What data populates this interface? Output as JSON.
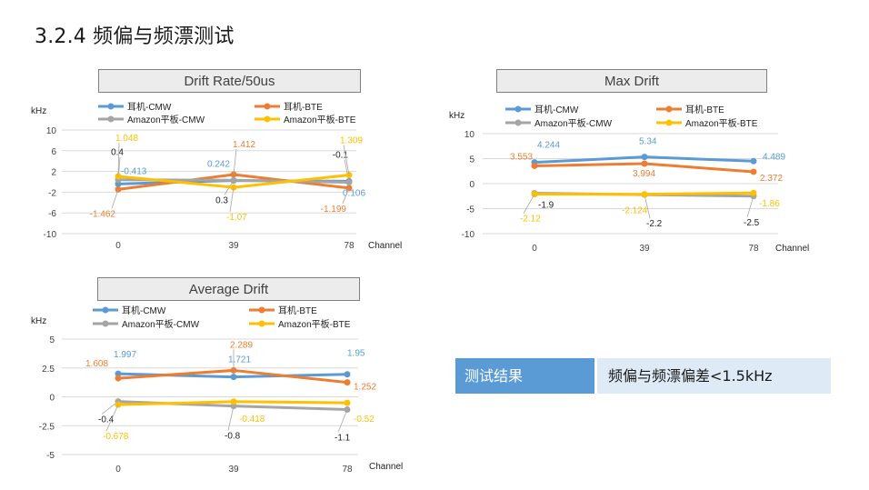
{
  "page": {
    "title": "3.2.4 频偏与频漂测试",
    "result_label": "测试结果",
    "result_value": "频偏与频漂偏差<1.5kHz"
  },
  "colors": {
    "earphone_cmw": "#5b9bd5",
    "earphone_bte": "#ed7d31",
    "amazon_cmw": "#a5a5a5",
    "amazon_bte": "#ffc000"
  },
  "chart_data": [
    {
      "type": "line",
      "title": "Drift Rate/50us",
      "ylabel": "kHz",
      "xlabel": "Channel",
      "categories": [
        "0",
        "39",
        "78"
      ],
      "ylim": [
        -10,
        10
      ],
      "yticks": [
        -10,
        -6,
        -2,
        2,
        6,
        10
      ],
      "legend_position": "top",
      "series": [
        {
          "name": "耳机-CMW",
          "color": "#5b9bd5",
          "values": [
            -0.413,
            0.242,
            0.106
          ],
          "labels": [
            "-0.413",
            "0.242",
            "0.106"
          ]
        },
        {
          "name": "耳机-BTE",
          "color": "#ed7d31",
          "values": [
            -1.462,
            1.412,
            -1.199
          ],
          "labels": [
            "-1.462",
            "1.412",
            "-1.199"
          ]
        },
        {
          "name": "Amazon平板-CMW",
          "color": "#a5a5a5",
          "values": [
            0.4,
            0.3,
            -0.1
          ],
          "labels": [
            "0.4",
            "0.3",
            "-0.1"
          ]
        },
        {
          "name": "Amazon平板-BTE",
          "color": "#ffc000",
          "values": [
            1.048,
            -1.07,
            1.309
          ],
          "labels": [
            "1.048",
            "-1.07",
            "1.309"
          ]
        }
      ]
    },
    {
      "type": "line",
      "title": "Max Drift",
      "ylabel": "kHz",
      "xlabel": "Channel",
      "categories": [
        "0",
        "39",
        "78"
      ],
      "ylim": [
        -10,
        10
      ],
      "yticks": [
        -10,
        -5,
        0,
        5,
        10
      ],
      "legend_position": "top",
      "series": [
        {
          "name": "耳机-CMW",
          "color": "#5b9bd5",
          "values": [
            4.244,
            5.34,
            4.489
          ],
          "labels": [
            "4.244",
            "5.34",
            "4.489"
          ]
        },
        {
          "name": "耳机-BTE",
          "color": "#ed7d31",
          "values": [
            3.553,
            3.994,
            2.372
          ],
          "labels": [
            "3.553",
            "3.994",
            "2.372"
          ]
        },
        {
          "name": "Amazon平板-CMW",
          "color": "#a5a5a5",
          "values": [
            -1.9,
            -2.2,
            -2.5
          ],
          "labels": [
            "-1.9",
            "-2.2",
            "-2.5"
          ]
        },
        {
          "name": "Amazon平板-BTE",
          "color": "#ffc000",
          "values": [
            -2.12,
            -2.124,
            -1.86
          ],
          "labels": [
            "-2.12",
            "-2.124",
            "-1.86"
          ]
        }
      ]
    },
    {
      "type": "line",
      "title": "Average Drift",
      "ylabel": "kHz",
      "xlabel": "Channel",
      "categories": [
        "0",
        "39",
        "78"
      ],
      "ylim": [
        -5,
        5
      ],
      "yticks": [
        -5,
        -2.5,
        0,
        2.5,
        5
      ],
      "legend_position": "top",
      "series": [
        {
          "name": "耳机-CMW",
          "color": "#5b9bd5",
          "values": [
            1.997,
            1.721,
            1.95
          ],
          "labels": [
            "1.997",
            "1.721",
            "1.95"
          ]
        },
        {
          "name": "耳机-BTE",
          "color": "#ed7d31",
          "values": [
            1.608,
            2.289,
            1.252
          ],
          "labels": [
            "1.608",
            "2.289",
            "1.252"
          ]
        },
        {
          "name": "Amazon平板-CMW",
          "color": "#a5a5a5",
          "values": [
            -0.4,
            -0.8,
            -1.1
          ],
          "labels": [
            "-0.4",
            "-0.8",
            "-1.1"
          ]
        },
        {
          "name": "Amazon平板-BTE",
          "color": "#ffc000",
          "values": [
            -0.678,
            -0.418,
            -0.52
          ],
          "labels": [
            "-0.678",
            "-0.418",
            "-0.52"
          ]
        }
      ]
    }
  ]
}
